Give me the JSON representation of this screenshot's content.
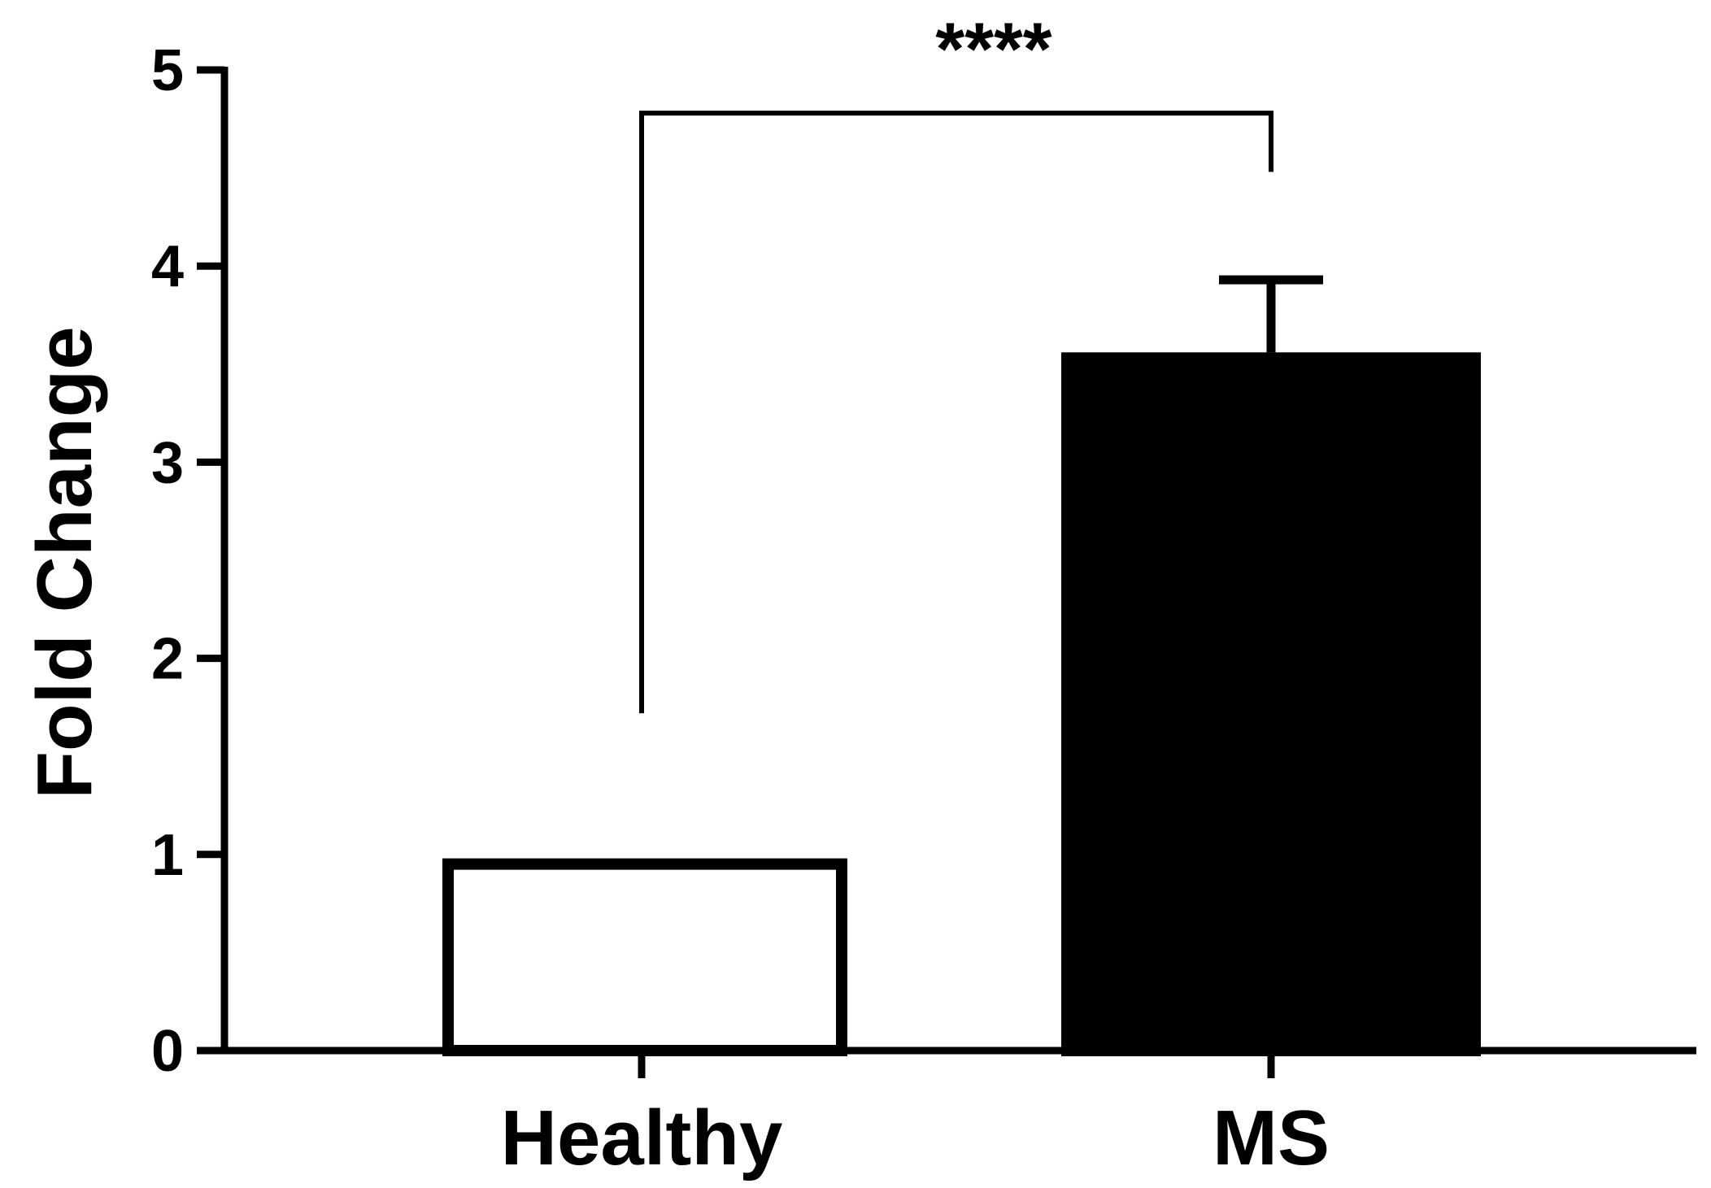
{
  "chart_data": {
    "type": "bar",
    "categories": [
      "Healthy",
      "MS"
    ],
    "values": [
      0.98,
      3.56
    ],
    "error_upper": [
      0.98,
      3.93
    ],
    "ylabel": "Fold Change",
    "xlabel": "",
    "ylim": [
      0,
      5
    ],
    "yticks": [
      "0",
      "1",
      "2",
      "3",
      "4",
      "5"
    ],
    "bar_colors": [
      "#ffffff",
      "#000000"
    ],
    "bar_edge_color": "#000000",
    "grid": false,
    "significance": {
      "label": "****",
      "between": [
        "Healthy",
        "MS"
      ],
      "bracket_y": 4.78,
      "left_drop_to": 1.72,
      "right_drop_to": 4.48
    }
  }
}
